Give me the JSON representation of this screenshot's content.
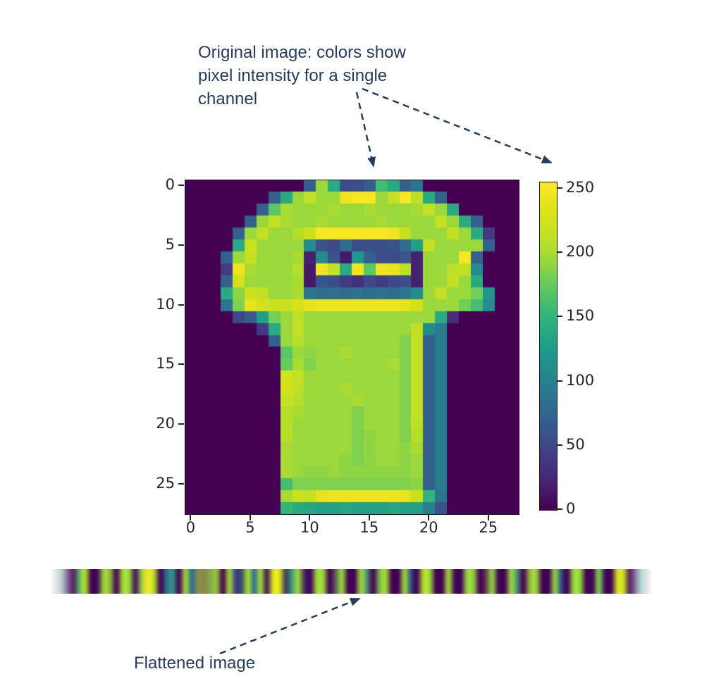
{
  "figure": {
    "background": "#ffffff",
    "annotations": {
      "original": {
        "lines": [
          "Original image: colors show",
          "pixel intensity for a single",
          "channel"
        ],
        "color": "#253c5b"
      },
      "flattened": {
        "label": "Flattened image",
        "color": "#253c5b"
      }
    }
  },
  "colors": {
    "annotation_navy": "#253c5b",
    "tick_label": "#262626",
    "axis_spine": "#151515",
    "heatmap_background": "#440154",
    "viridis_stops": [
      [
        0.0,
        "#440154"
      ],
      [
        0.1,
        "#482878"
      ],
      [
        0.2,
        "#3e4989"
      ],
      [
        0.3,
        "#31688e"
      ],
      [
        0.4,
        "#26828e"
      ],
      [
        0.5,
        "#1f9e89"
      ],
      [
        0.6,
        "#35b779"
      ],
      [
        0.7,
        "#6dcd59"
      ],
      [
        0.8,
        "#b4de2c"
      ],
      [
        0.9,
        "#d8e219"
      ],
      [
        1.0,
        "#fde725"
      ]
    ]
  },
  "chart_data": [
    {
      "type": "heatmap",
      "title": "",
      "rows": 28,
      "cols": 28,
      "vmin": 0,
      "vmax": 255,
      "colormap": "viridis",
      "grid": false,
      "x_ticks": [
        0,
        5,
        10,
        15,
        20,
        25
      ],
      "y_ticks": [
        0,
        5,
        10,
        15,
        20,
        25
      ],
      "colorbar_ticks": [
        0,
        50,
        100,
        150,
        200,
        250
      ],
      "legend_position": "right-colorbar",
      "values": [
        [
          0,
          0,
          0,
          0,
          0,
          0,
          0,
          0,
          0,
          0,
          70,
          195,
          140,
          55,
          55,
          70,
          160,
          140,
          70,
          90,
          0,
          0,
          0,
          0,
          0,
          0,
          0,
          0
        ],
        [
          0,
          0,
          0,
          0,
          0,
          0,
          0,
          70,
          140,
          195,
          215,
          195,
          195,
          245,
          250,
          250,
          195,
          215,
          250,
          210,
          140,
          70,
          0,
          0,
          0,
          0,
          0,
          0
        ],
        [
          0,
          0,
          0,
          0,
          0,
          0,
          70,
          170,
          200,
          195,
          195,
          195,
          200,
          195,
          195,
          200,
          195,
          195,
          195,
          200,
          215,
          195,
          140,
          0,
          0,
          0,
          0,
          0
        ],
        [
          0,
          0,
          0,
          0,
          0,
          70,
          195,
          215,
          200,
          195,
          195,
          200,
          195,
          195,
          195,
          195,
          200,
          195,
          195,
          195,
          195,
          215,
          195,
          140,
          70,
          0,
          0,
          0
        ],
        [
          0,
          0,
          0,
          0,
          70,
          195,
          215,
          195,
          195,
          205,
          220,
          250,
          250,
          250,
          250,
          250,
          250,
          245,
          215,
          195,
          195,
          195,
          215,
          195,
          140,
          40,
          0,
          0
        ],
        [
          0,
          0,
          0,
          0,
          140,
          220,
          195,
          195,
          195,
          195,
          110,
          60,
          50,
          80,
          55,
          55,
          55,
          60,
          80,
          130,
          215,
          195,
          195,
          195,
          195,
          70,
          0,
          0
        ],
        [
          0,
          0,
          0,
          70,
          195,
          215,
          195,
          195,
          195,
          200,
          20,
          110,
          60,
          15,
          120,
          70,
          55,
          55,
          60,
          20,
          195,
          195,
          195,
          250,
          70,
          0,
          0,
          0
        ],
        [
          0,
          0,
          0,
          40,
          245,
          200,
          195,
          195,
          195,
          205,
          15,
          245,
          215,
          140,
          245,
          170,
          245,
          240,
          210,
          20,
          195,
          195,
          210,
          215,
          110,
          0,
          0,
          0
        ],
        [
          0,
          0,
          0,
          70,
          225,
          195,
          195,
          195,
          195,
          200,
          15,
          60,
          55,
          40,
          30,
          50,
          40,
          50,
          55,
          20,
          195,
          195,
          215,
          195,
          140,
          0,
          0,
          0
        ],
        [
          0,
          0,
          0,
          140,
          190,
          220,
          215,
          195,
          195,
          200,
          90,
          80,
          85,
          80,
          85,
          80,
          85,
          80,
          90,
          110,
          195,
          215,
          195,
          195,
          180,
          120,
          0,
          0
        ],
        [
          0,
          0,
          0,
          90,
          185,
          240,
          225,
          220,
          220,
          230,
          240,
          245,
          245,
          245,
          245,
          245,
          245,
          245,
          240,
          225,
          195,
          195,
          195,
          180,
          160,
          110,
          0,
          0
        ],
        [
          0,
          0,
          0,
          0,
          50,
          65,
          130,
          180,
          195,
          210,
          195,
          195,
          195,
          195,
          195,
          195,
          195,
          195,
          195,
          195,
          195,
          140,
          30,
          0,
          0,
          0,
          0,
          0
        ],
        [
          0,
          0,
          0,
          0,
          0,
          0,
          40,
          140,
          195,
          215,
          195,
          195,
          195,
          195,
          195,
          195,
          195,
          195,
          195,
          215,
          110,
          95,
          0,
          0,
          0,
          0,
          0,
          0
        ],
        [
          0,
          0,
          0,
          0,
          0,
          0,
          0,
          70,
          195,
          205,
          195,
          195,
          195,
          195,
          195,
          195,
          195,
          195,
          185,
          215,
          70,
          95,
          0,
          0,
          0,
          0,
          0,
          0
        ],
        [
          0,
          0,
          0,
          0,
          0,
          0,
          0,
          0,
          170,
          195,
          190,
          195,
          195,
          200,
          195,
          195,
          195,
          195,
          185,
          215,
          70,
          95,
          0,
          0,
          0,
          0,
          0,
          0
        ],
        [
          0,
          0,
          0,
          0,
          0,
          0,
          0,
          0,
          175,
          200,
          185,
          195,
          195,
          195,
          195,
          195,
          195,
          200,
          185,
          215,
          70,
          95,
          0,
          0,
          0,
          0,
          0,
          0
        ],
        [
          0,
          0,
          0,
          0,
          0,
          0,
          0,
          0,
          225,
          215,
          195,
          195,
          195,
          195,
          195,
          195,
          195,
          195,
          185,
          215,
          70,
          95,
          0,
          0,
          0,
          0,
          0,
          0
        ],
        [
          0,
          0,
          0,
          0,
          0,
          0,
          0,
          0,
          225,
          210,
          195,
          195,
          195,
          200,
          195,
          195,
          195,
          195,
          185,
          215,
          70,
          95,
          0,
          0,
          0,
          0,
          0,
          0
        ],
        [
          0,
          0,
          0,
          0,
          0,
          0,
          0,
          0,
          215,
          205,
          195,
          195,
          195,
          195,
          200,
          195,
          195,
          195,
          185,
          215,
          70,
          95,
          0,
          0,
          0,
          0,
          0,
          0
        ],
        [
          0,
          0,
          0,
          0,
          0,
          0,
          0,
          0,
          205,
          200,
          195,
          195,
          195,
          195,
          185,
          195,
          195,
          195,
          185,
          215,
          70,
          95,
          0,
          0,
          0,
          0,
          0,
          0
        ],
        [
          0,
          0,
          0,
          0,
          0,
          0,
          0,
          0,
          205,
          195,
          195,
          195,
          195,
          195,
          185,
          195,
          195,
          195,
          185,
          210,
          70,
          95,
          0,
          0,
          0,
          0,
          0,
          0
        ],
        [
          0,
          0,
          0,
          0,
          0,
          0,
          0,
          0,
          205,
          195,
          195,
          195,
          195,
          195,
          185,
          190,
          195,
          195,
          185,
          205,
          70,
          95,
          0,
          0,
          0,
          0,
          0,
          0
        ],
        [
          0,
          0,
          0,
          0,
          0,
          0,
          0,
          0,
          200,
          195,
          195,
          195,
          195,
          195,
          185,
          190,
          195,
          195,
          190,
          200,
          70,
          95,
          0,
          0,
          0,
          0,
          0,
          0
        ],
        [
          0,
          0,
          0,
          0,
          0,
          0,
          0,
          0,
          200,
          195,
          195,
          195,
          195,
          190,
          185,
          190,
          195,
          195,
          190,
          195,
          70,
          95,
          0,
          0,
          0,
          0,
          0,
          0
        ],
        [
          0,
          0,
          0,
          0,
          0,
          0,
          0,
          0,
          200,
          195,
          190,
          190,
          195,
          190,
          190,
          190,
          190,
          190,
          190,
          195,
          70,
          95,
          0,
          0,
          0,
          0,
          0,
          0
        ],
        [
          0,
          0,
          0,
          0,
          0,
          0,
          0,
          0,
          160,
          185,
          185,
          185,
          185,
          185,
          185,
          185,
          185,
          185,
          185,
          190,
          70,
          95,
          0,
          0,
          0,
          0,
          0,
          0
        ],
        [
          0,
          0,
          0,
          0,
          0,
          0,
          0,
          0,
          200,
          220,
          215,
          240,
          245,
          245,
          245,
          245,
          245,
          245,
          240,
          220,
          150,
          90,
          0,
          0,
          0,
          0,
          0,
          0
        ],
        [
          0,
          0,
          0,
          0,
          0,
          0,
          0,
          0,
          150,
          140,
          135,
          130,
          130,
          135,
          130,
          130,
          130,
          135,
          130,
          130,
          100,
          60,
          0,
          0,
          0,
          0,
          0,
          0
        ]
      ]
    },
    {
      "type": "heatmap",
      "title": "",
      "rows": 1,
      "cols": 784,
      "vmin": 0,
      "vmax": 255,
      "colormap": "viridis",
      "source": "row-major flatten of the 28x28 image above",
      "appearance": "horizontally smoothed strip with white fades at both ends"
    }
  ]
}
